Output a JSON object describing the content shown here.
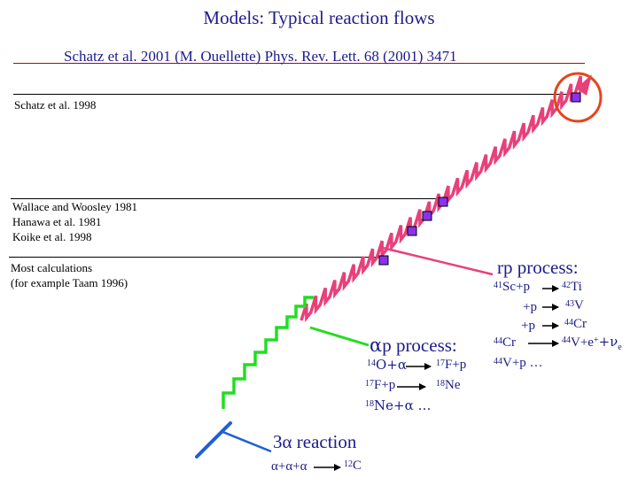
{
  "title": "Models: Typical reaction flows",
  "reference": "Schatz et al. 2001 (M. Ouellette) Phys. Rev. Lett. 68 (2001) 3471",
  "notes": {
    "schatz_1998": "Schatz et al. 1998",
    "wallace": [
      "Wallace and Woosley 1981",
      "Hanawa et al. 1981",
      "Koike et al. 1998"
    ],
    "most": [
      "Most calculations",
      "(for example Taam 1996)"
    ]
  },
  "rp_process": {
    "label": "rp process:",
    "reactions": {
      "r1_left_sup": "41",
      "r1_left": "Sc+p",
      "r1_right_sup": "42",
      "r1_right": "Ti",
      "r2_left": "+p",
      "r2_right_sup": "43",
      "r2_right": "V",
      "r3_left": "+p",
      "r3_right_sup": "44",
      "r3_right": "Cr",
      "r4_left_sup": "44",
      "r4_left": "Cr",
      "r4_right_sup": "44",
      "r4_right": "V+e",
      "r4_plus": "+",
      "r4_nu": "+ν",
      "r4_e": "e",
      "r5_sup": "44",
      "r5": "V+p …"
    }
  },
  "ap_process": {
    "alpha": "α",
    "label": "p process:",
    "reactions": {
      "r1_left_sup": "14",
      "r1_left": "O+α",
      "r1_right_sup": "17",
      "r1_right": "F+p",
      "r2_left_sup": "17",
      "r2_left": "F+p",
      "r2_right_sup": "18",
      "r2_right": "Ne",
      "r3_sup": "18",
      "r3": "Ne+α …"
    }
  },
  "triple_alpha": {
    "label": "3α reaction",
    "reaction_left": "α+α+α",
    "reaction_right_sup": "12",
    "reaction_right": "C"
  },
  "colors": {
    "title": "#1c1c8a",
    "rp": "#e8407a",
    "ap": "#22dd22",
    "triple": "#1f5fd8",
    "marker": "#8a33ee",
    "circle": "#e8431c",
    "reference_line": "#b8000f"
  }
}
